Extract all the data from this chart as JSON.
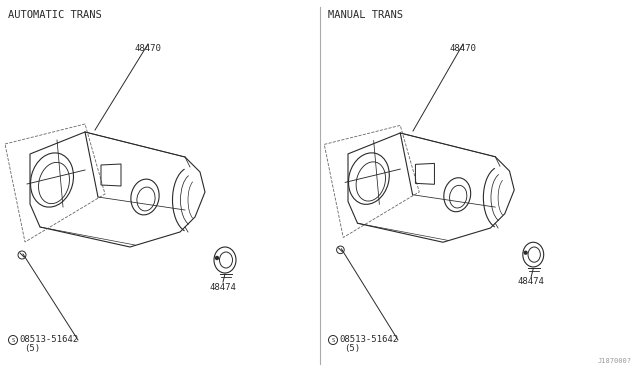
{
  "bg_color": "#ffffff",
  "line_color": "#2a2a2a",
  "dashed_color": "#666666",
  "title_left": "AUTOMATIC TRANS",
  "title_right": "MANUAL TRANS",
  "part_label_1": "48470",
  "part_label_2": "48474",
  "part_label_screw": "08513-51642",
  "part_label_screw_qty": "(5)",
  "diagram_number": "J187000?",
  "font_size_title": 7.5,
  "font_size_label": 6.5
}
